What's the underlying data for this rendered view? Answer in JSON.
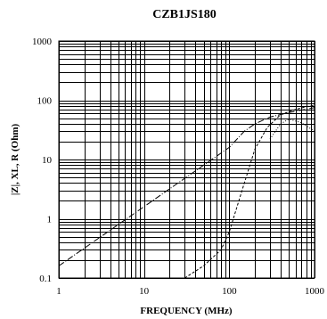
{
  "chart_data": {
    "type": "line",
    "title": "CZB1JS180",
    "xlabel": "FREQUENCY (MHz)",
    "ylabel": "|Z|, XL, R (Ohm)",
    "xscale": "log",
    "yscale": "log",
    "xlim": [
      1,
      1000
    ],
    "ylim": [
      0.1,
      1000
    ],
    "xticks": [
      1,
      10,
      100,
      1000
    ],
    "xtick_labels": [
      "1",
      "10",
      "100",
      "1000"
    ],
    "yticks": [
      0.1,
      1,
      10,
      100,
      1000
    ],
    "ytick_labels": [
      "0.1",
      "1",
      "10",
      "100",
      "1000"
    ],
    "grid": true,
    "series": [
      {
        "style": "dash-dot",
        "points": [
          [
            1,
            0.16
          ],
          [
            10,
            1.6
          ],
          [
            50,
            8
          ],
          [
            100,
            16
          ],
          [
            150,
            30
          ],
          [
            200,
            40
          ],
          [
            300,
            52
          ],
          [
            500,
            62
          ],
          [
            700,
            68
          ],
          [
            1000,
            75
          ]
        ]
      },
      {
        "style": "dashed",
        "points": [
          [
            30,
            0.1
          ],
          [
            50,
            0.16
          ],
          [
            80,
            0.3
          ],
          [
            100,
            0.6
          ],
          [
            150,
            4
          ],
          [
            200,
            15
          ],
          [
            280,
            35
          ],
          [
            400,
            57
          ],
          [
            600,
            70
          ],
          [
            800,
            78
          ],
          [
            1000,
            82
          ]
        ]
      },
      {
        "style": "dotted",
        "points": [
          [
            300,
            22
          ],
          [
            400,
            40
          ],
          [
            500,
            48
          ],
          [
            700,
            42
          ],
          [
            850,
            35
          ],
          [
            1000,
            30
          ]
        ]
      }
    ]
  }
}
